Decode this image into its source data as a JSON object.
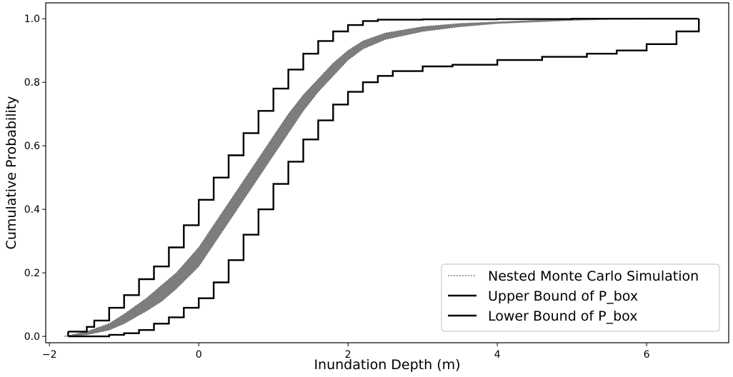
{
  "chart_data": {
    "type": "line",
    "title": "",
    "xlabel": "Inundation Depth (m)",
    "ylabel": "Cumulative Probability",
    "xlim": [
      -2.05,
      7.1
    ],
    "ylim": [
      -0.02,
      1.05
    ],
    "xticks": [
      -2,
      0,
      2,
      4,
      6
    ],
    "xtick_labels": [
      "−2",
      "0",
      "2",
      "4",
      "6"
    ],
    "yticks": [
      0.0,
      0.2,
      0.4,
      0.6,
      0.8,
      1.0
    ],
    "ytick_labels": [
      "0.0",
      "0.2",
      "0.4",
      "0.6",
      "0.8",
      "1.0"
    ],
    "grid": false,
    "legend_position": "bottom-right",
    "colors": {
      "simulation": "#666666",
      "bounds": "#000000"
    },
    "simulation_band": {
      "name": "Nested Monte Carlo Simulation",
      "style": "dotted",
      "x": [
        -1.8,
        -1.5,
        -1.2,
        -1.0,
        -0.7,
        -0.5,
        -0.3,
        0.0,
        0.2,
        0.4,
        0.6,
        0.8,
        1.0,
        1.2,
        1.4,
        1.6,
        1.8,
        2.0,
        2.2,
        2.5,
        3.0,
        3.5,
        4.0,
        4.5,
        5.0,
        5.5,
        6.0,
        6.7
      ],
      "upper": [
        0.0,
        0.015,
        0.04,
        0.07,
        0.12,
        0.16,
        0.2,
        0.28,
        0.35,
        0.42,
        0.49,
        0.56,
        0.63,
        0.7,
        0.76,
        0.81,
        0.86,
        0.9,
        0.93,
        0.955,
        0.975,
        0.985,
        0.99,
        0.995,
        0.997,
        0.999,
        1.0,
        1.0
      ],
      "lower": [
        0.0,
        0.005,
        0.02,
        0.04,
        0.08,
        0.11,
        0.15,
        0.22,
        0.29,
        0.36,
        0.43,
        0.5,
        0.57,
        0.64,
        0.71,
        0.77,
        0.82,
        0.87,
        0.905,
        0.935,
        0.96,
        0.975,
        0.985,
        0.99,
        0.995,
        0.998,
        0.999,
        1.0
      ]
    },
    "series": [
      {
        "name": "Upper Bound of P_box",
        "x": [
          -1.75,
          -1.5,
          -1.4,
          -1.2,
          -1.0,
          -0.8,
          -0.6,
          -0.4,
          -0.2,
          0.0,
          0.2,
          0.4,
          0.6,
          0.8,
          1.0,
          1.2,
          1.4,
          1.6,
          1.8,
          2.0,
          2.2,
          2.4,
          3.0,
          4.0,
          5.0,
          6.0,
          6.7
        ],
        "y": [
          0.015,
          0.03,
          0.05,
          0.09,
          0.13,
          0.18,
          0.22,
          0.28,
          0.35,
          0.43,
          0.5,
          0.57,
          0.64,
          0.71,
          0.78,
          0.84,
          0.89,
          0.93,
          0.96,
          0.98,
          0.993,
          0.997,
          0.998,
          0.999,
          1.0,
          1.0,
          1.0
        ]
      },
      {
        "name": "Lower Bound of P_box",
        "x": [
          -1.75,
          -1.5,
          -1.2,
          -1.0,
          -0.8,
          -0.6,
          -0.4,
          -0.2,
          0.0,
          0.2,
          0.4,
          0.6,
          0.8,
          1.0,
          1.2,
          1.4,
          1.6,
          1.8,
          2.0,
          2.2,
          2.4,
          2.6,
          3.0,
          3.4,
          4.0,
          4.6,
          5.2,
          5.6,
          6.0,
          6.4,
          6.7
        ],
        "y": [
          0.0,
          0.0,
          0.005,
          0.01,
          0.02,
          0.04,
          0.06,
          0.09,
          0.12,
          0.17,
          0.24,
          0.32,
          0.4,
          0.48,
          0.55,
          0.62,
          0.68,
          0.73,
          0.77,
          0.8,
          0.82,
          0.835,
          0.85,
          0.855,
          0.87,
          0.88,
          0.89,
          0.9,
          0.92,
          0.96,
          0.975
        ]
      }
    ]
  }
}
